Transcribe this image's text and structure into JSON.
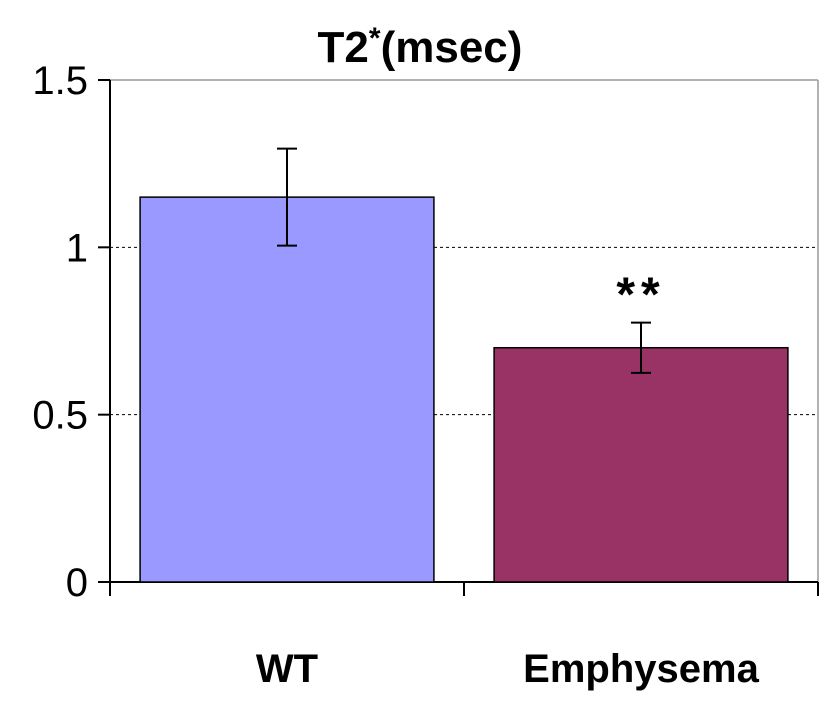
{
  "chart_data": {
    "type": "bar",
    "title": "T2",
    "title_superscript": "*",
    "title_suffix": "(msec)",
    "categories": [
      "WT",
      "Emphysema"
    ],
    "values": [
      1.15,
      0.7
    ],
    "errors": [
      0.145,
      0.075
    ],
    "bar_colors": [
      "#9999ff",
      "#993366"
    ],
    "annotations": [
      "",
      "**"
    ],
    "ylim": [
      0,
      1.5
    ],
    "yticks": [
      0,
      0.5,
      1,
      1.5
    ],
    "ytick_labels": [
      "0",
      "0.5",
      "1",
      "1.5"
    ],
    "xlabel": "",
    "ylabel": "",
    "grid": true
  }
}
